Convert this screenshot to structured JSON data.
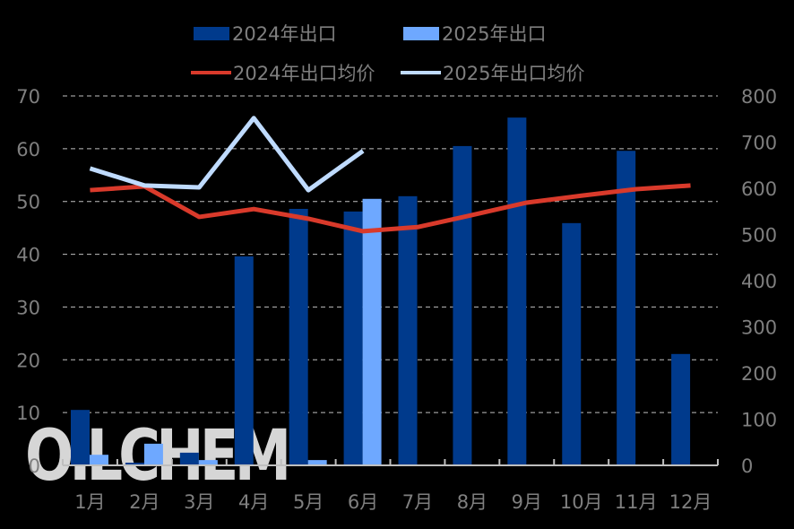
{
  "legend": {
    "items": [
      {
        "label": "2024年出口",
        "type": "bar",
        "color": "#003A8C"
      },
      {
        "label": "2025年出口",
        "type": "bar",
        "color": "#6EA8FF"
      },
      {
        "label": "2024年出口均价",
        "type": "line",
        "color": "#D93A2B"
      },
      {
        "label": "2025年出口均价",
        "type": "line",
        "color": "#BFDBFF"
      }
    ]
  },
  "watermark": "OILCHEM",
  "chart_data": {
    "type": "bar",
    "title": "",
    "xlabel": "",
    "ylabel": "",
    "categories": [
      "1月",
      "2月",
      "3月",
      "4月",
      "5月",
      "6月",
      "7月",
      "8月",
      "9月",
      "10月",
      "11月",
      "12月"
    ],
    "series": [
      {
        "name": "2024年出口",
        "type": "bar",
        "axis": "left",
        "color": "#003A8C",
        "values": [
          10.5,
          0.5,
          2.4,
          39.6,
          48.6,
          48.1,
          51.0,
          60.5,
          65.9,
          45.9,
          59.6,
          21.1
        ]
      },
      {
        "name": "2025年出口",
        "type": "bar",
        "axis": "left",
        "color": "#6EA8FF",
        "values": [
          2.0,
          4.1,
          1.0,
          0.1,
          1.0,
          50.5,
          null,
          null,
          null,
          null,
          null,
          null
        ]
      },
      {
        "name": "2024年出口均价",
        "type": "line",
        "axis": "right",
        "color": "#D93A2B",
        "values": [
          596,
          604,
          538,
          555,
          534,
          507,
          516,
          542,
          569,
          584,
          598,
          606
        ]
      },
      {
        "name": "2025年出口均价",
        "type": "line",
        "axis": "right",
        "color": "#BFDBFF",
        "values": [
          643,
          606,
          602,
          752,
          596,
          681,
          null,
          null,
          null,
          null,
          null,
          null
        ]
      }
    ],
    "ylim": [
      0,
      70
    ],
    "y_ticks": [
      0,
      10,
      20,
      30,
      40,
      50,
      60,
      70
    ],
    "y2lim": [
      0,
      800
    ],
    "y2_ticks": [
      0,
      100,
      200,
      300,
      400,
      500,
      600,
      700,
      800
    ],
    "grid": true,
    "legend_position": "top"
  }
}
